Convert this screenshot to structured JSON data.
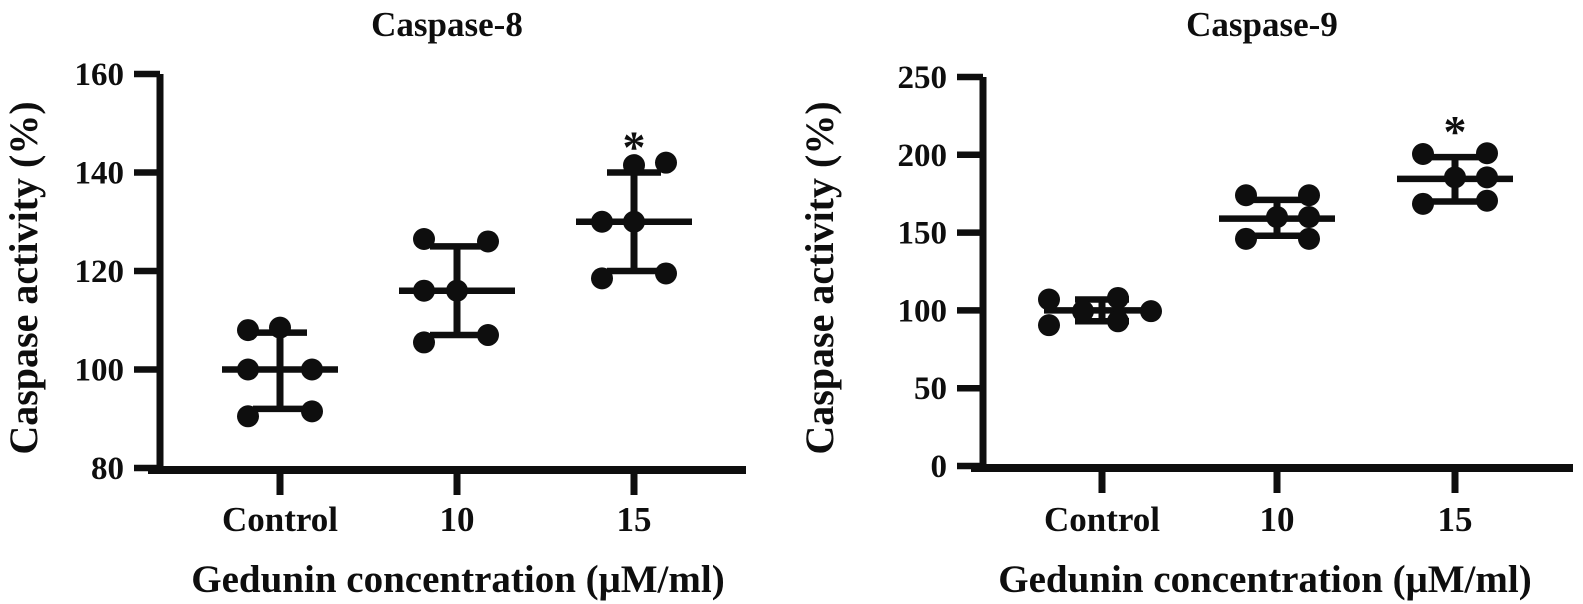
{
  "figure": {
    "background": "#ffffff",
    "ink_color": "#0e0e0e",
    "description": "Two-panel dot plot of caspase activity versus gedunin concentration"
  },
  "chart_data": [
    {
      "type": "scatter",
      "title": "Caspase-8",
      "ylabel": "Caspase activity (%)",
      "xlabel": "Gedunin concentration (μM/ml)",
      "ylim": [
        80,
        160
      ],
      "yticks": [
        80,
        100,
        120,
        140,
        160
      ],
      "grid": false,
      "legend": "none",
      "categories": [
        "Control",
        "10",
        "15"
      ],
      "groups": [
        {
          "label": "Control",
          "mean": 100,
          "whisker_low": 92,
          "whisker_high": 107.5,
          "significance": "",
          "points": [
            [
              -32,
              108
            ],
            [
              0,
              108.5
            ],
            [
              -32,
              100
            ],
            [
              32,
              100
            ],
            [
              -32,
              90.5
            ],
            [
              32,
              91.5
            ]
          ]
        },
        {
          "label": "10",
          "mean": 116,
          "whisker_low": 107,
          "whisker_high": 125,
          "significance": "",
          "points": [
            [
              -33,
              126.5
            ],
            [
              31,
              126
            ],
            [
              -33,
              116
            ],
            [
              0,
              116
            ],
            [
              -33,
              105.5
            ],
            [
              31,
              107
            ]
          ]
        },
        {
          "label": "15",
          "mean": 130,
          "whisker_low": 120,
          "whisker_high": 140,
          "significance": "*",
          "points": [
            [
              0,
              141.5
            ],
            [
              32,
              142
            ],
            [
              -32,
              130
            ],
            [
              0,
              130
            ],
            [
              -32,
              118.5
            ],
            [
              32,
              119.5
            ]
          ]
        }
      ]
    },
    {
      "type": "scatter",
      "title": "Caspase-9",
      "ylabel": "Caspase activity (%)",
      "xlabel": "Gedunin concentration (μM/ml)",
      "ylim": [
        0,
        250
      ],
      "yticks": [
        0,
        50,
        100,
        150,
        200,
        250
      ],
      "grid": false,
      "legend": "none",
      "categories": [
        "Control",
        "10",
        "15"
      ],
      "groups": [
        {
          "label": "Control",
          "mean": 100,
          "whisker_low": 93,
          "whisker_high": 107,
          "significance": "",
          "points": [
            [
              -53,
              107
            ],
            [
              -53,
              90.5
            ],
            [
              -19,
              99.5
            ],
            [
              16,
              108
            ],
            [
              16,
              93
            ],
            [
              49,
              99.5
            ]
          ]
        },
        {
          "label": "10",
          "mean": 159,
          "whisker_low": 148,
          "whisker_high": 171,
          "significance": "",
          "points": [
            [
              -31,
              174
            ],
            [
              32,
              174
            ],
            [
              0,
              160
            ],
            [
              32,
              160
            ],
            [
              -31,
              146
            ],
            [
              32,
              146
            ]
          ]
        },
        {
          "label": "15",
          "mean": 184.5,
          "whisker_low": 170,
          "whisker_high": 198.5,
          "significance": "*",
          "points": [
            [
              -32,
              200.5
            ],
            [
              32,
              201
            ],
            [
              0,
              185.5
            ],
            [
              32,
              185.5
            ],
            [
              -32,
              168.5
            ],
            [
              32,
              170.5
            ]
          ]
        }
      ]
    }
  ]
}
